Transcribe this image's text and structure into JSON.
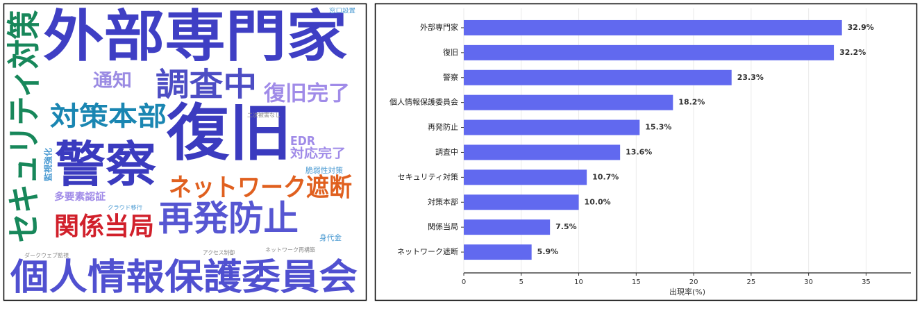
{
  "chart_data": [
    {
      "type": "wordcloud",
      "words": [
        {
          "text": "外部専門家",
          "color": "#3f3fc4"
        },
        {
          "text": "セキュリティ対策",
          "color": "#17875a"
        },
        {
          "text": "調査中",
          "color": "#4d4dc4"
        },
        {
          "text": "通知",
          "color": "#9b8be3"
        },
        {
          "text": "復旧完了",
          "color": "#a08be8"
        },
        {
          "text": "対策本部",
          "color": "#1a86b2"
        },
        {
          "text": "復旧",
          "color": "#3b3bbf"
        },
        {
          "text": "二次被害なし",
          "color": "#8a8a8a"
        },
        {
          "text": "EDR",
          "color": "#a08be8"
        },
        {
          "text": "対応完了",
          "color": "#a08be8"
        },
        {
          "text": "警察",
          "color": "#3b3bbf"
        },
        {
          "text": "監視強化",
          "color": "#4a9ad2"
        },
        {
          "text": "脆弱性対策",
          "color": "#4a9ad2"
        },
        {
          "text": "ネットワーク遮断",
          "color": "#e0601f"
        },
        {
          "text": "多要素認証",
          "color": "#a08be8"
        },
        {
          "text": "クラウド移行",
          "color": "#4a9ad2"
        },
        {
          "text": "関係当局",
          "color": "#d1202b"
        },
        {
          "text": "再発防止",
          "color": "#5656d2"
        },
        {
          "text": "身代金",
          "color": "#4a9ad2"
        },
        {
          "text": "ダークウェブ監視",
          "color": "#8a8a8a"
        },
        {
          "text": "アクセス制御",
          "color": "#8a8a8a"
        },
        {
          "text": "ネットワーク再構築",
          "color": "#8a8a8a"
        },
        {
          "text": "個人情報保護委員会",
          "color": "#5050d0"
        },
        {
          "text": "窓口設置",
          "color": "#4a9ad2"
        }
      ]
    },
    {
      "type": "barh",
      "categories": [
        "外部専門家",
        "復旧",
        "警察",
        "個人情報保護委員会",
        "再発防止",
        "調査中",
        "セキュリティ対策",
        "対策本部",
        "関係当局",
        "ネットワーク遮断"
      ],
      "values": [
        32.9,
        32.2,
        23.3,
        18.2,
        15.3,
        13.6,
        10.7,
        10.0,
        7.5,
        5.9
      ],
      "value_labels": [
        "32.9%",
        "32.2%",
        "23.3%",
        "18.2%",
        "15.3%",
        "13.6%",
        "10.7%",
        "10.0%",
        "7.5%",
        "5.9%"
      ],
      "color": "#6169ef",
      "x_label": "出現率(%)",
      "xlim": [
        0,
        38.9
      ],
      "xticks": [
        0,
        5,
        10,
        15,
        20,
        25,
        30,
        35
      ],
      "grid": true
    }
  ]
}
